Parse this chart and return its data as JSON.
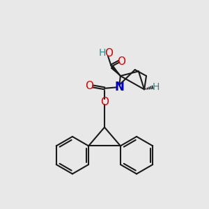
{
  "background_color": "#e8e8e8",
  "atom_colors": {
    "O": "#dd0000",
    "N": "#0000cc",
    "H_label": "#2e8b8b"
  },
  "line_color": "#1a1a1a",
  "line_width": 1.5,
  "xlim": [
    0,
    10
  ],
  "ylim": [
    0,
    10
  ],
  "figsize": [
    3.0,
    3.0
  ],
  "dpi": 100
}
